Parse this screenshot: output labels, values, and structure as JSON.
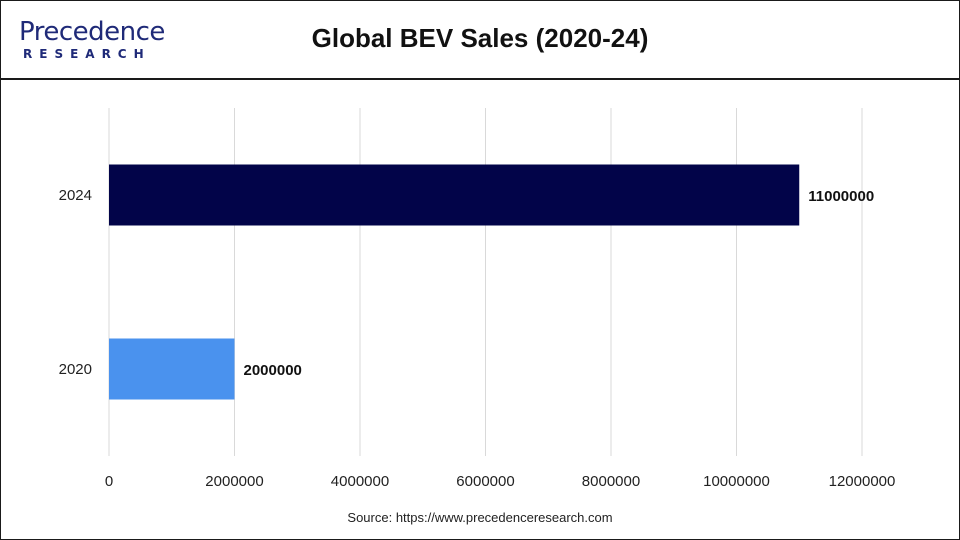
{
  "logo": {
    "top": "Precedence",
    "bottom": "RESEARCH"
  },
  "colors": {
    "brand": "#1f2a78",
    "bar_2024": "#020449",
    "bar_2020": "#4a92ee",
    "grid": "#d9d9d9"
  },
  "source": "Source: https://www.precedenceresearch.com",
  "chart_data": {
    "type": "bar",
    "orientation": "horizontal",
    "title": "Global BEV Sales (2020-24)",
    "xlabel": "",
    "ylabel": "",
    "categories": [
      "2024",
      "2020"
    ],
    "values": [
      11000000,
      2000000
    ],
    "data_labels": [
      "11000000",
      "2000000"
    ],
    "xlim": [
      0,
      12000000
    ],
    "xticks": [
      0,
      2000000,
      4000000,
      6000000,
      8000000,
      10000000,
      12000000
    ],
    "xtick_labels": [
      "0",
      "2000000",
      "4000000",
      "6000000",
      "8000000",
      "10000000",
      "12000000"
    ],
    "grid": "vertical",
    "legend": "none"
  }
}
